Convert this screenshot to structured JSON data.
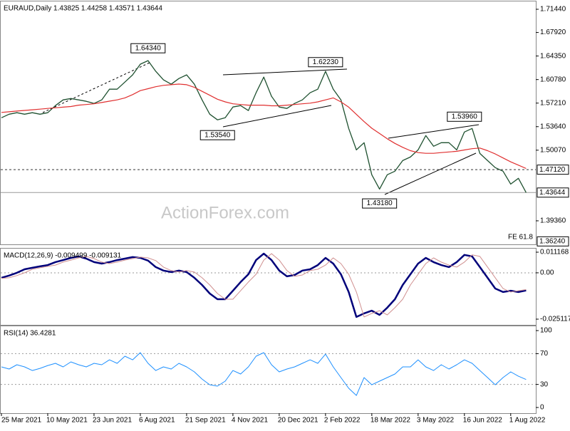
{
  "chart_data": [
    {
      "type": "line",
      "title": "EURAUD,Daily  1.43825 1.44258 1.43571 1.43644",
      "watermark": "ActionForex.com",
      "ylim": [
        1.3579,
        1.7263
      ],
      "yticks": [
        {
          "value": 1.7144,
          "label": "1.71440"
        },
        {
          "value": 1.6792,
          "label": "1.67920"
        },
        {
          "value": 1.6435,
          "label": "1.64350"
        },
        {
          "value": 1.6078,
          "label": "1.60780"
        },
        {
          "value": 1.5721,
          "label": "1.57210"
        },
        {
          "value": 1.5364,
          "label": "1.53640"
        },
        {
          "value": 1.5007,
          "label": "1.50070"
        },
        {
          "value": 1.3936,
          "label": "1.39360"
        }
      ],
      "series": [
        {
          "color": "#1f5130",
          "values": [
            1.5499,
            1.5553,
            1.5575,
            1.5553,
            1.5575,
            1.5553,
            1.5575,
            1.5683,
            1.577,
            1.5791,
            1.577,
            1.5748,
            1.5716,
            1.577,
            1.5932,
            1.5932,
            1.604,
            1.6149,
            1.6311,
            1.6365,
            1.6203,
            1.6073,
            1.6008,
            1.6094,
            1.6149,
            1.6008,
            1.577,
            1.5553,
            1.5467,
            1.5499,
            1.5662,
            1.5683,
            1.5608,
            1.5878,
            1.6116,
            1.5824,
            1.5662,
            1.564,
            1.5716,
            1.577,
            1.5878,
            1.5932,
            1.6203,
            1.5932,
            1.577,
            1.5337,
            1.5012,
            1.5121,
            1.4634,
            1.4417,
            1.4634,
            1.4688,
            1.485,
            1.4904,
            1.5012,
            1.5229,
            1.5067,
            1.5121,
            1.5121,
            1.5012,
            1.5283,
            1.5337,
            1.4958,
            1.485,
            1.4742,
            1.4688,
            1.4493,
            1.458,
            1.4364
          ]
        },
        {
          "color": "#e03030",
          "values": [
            1.558,
            1.559,
            1.56,
            1.561,
            1.562,
            1.563,
            1.564,
            1.565,
            1.566,
            1.567,
            1.569,
            1.57,
            1.571,
            1.573,
            1.575,
            1.577,
            1.58,
            1.585,
            1.591,
            1.594,
            1.597,
            1.599,
            1.6,
            1.601,
            1.6,
            1.596,
            1.59,
            1.584,
            1.578,
            1.574,
            1.571,
            1.57,
            1.569,
            1.569,
            1.569,
            1.568,
            1.568,
            1.569,
            1.57,
            1.571,
            1.572,
            1.574,
            1.577,
            1.58,
            1.574,
            1.566,
            1.555,
            1.544,
            1.534,
            1.526,
            1.518,
            1.511,
            1.505,
            1.5,
            1.497,
            1.496,
            1.496,
            1.497,
            1.498,
            1.499,
            1.501,
            1.503,
            1.504,
            1.5,
            1.495,
            1.489,
            1.483,
            1.478,
            1.473
          ]
        }
      ],
      "price_levels": [
        {
          "value": 1.4712,
          "label": "1.47120",
          "line": "dashed"
        },
        {
          "value": 1.43644,
          "label": "1.43644",
          "line": "solid"
        },
        {
          "value": 1.3624,
          "label": "1.36240",
          "line": "none",
          "note": "FE 61.8"
        }
      ],
      "annotations": [
        {
          "label": "1.64340",
          "value": 1.6434,
          "at": 19,
          "position": "above"
        },
        {
          "label": "1.62230",
          "value": 1.6223,
          "at": 42,
          "position": "above"
        },
        {
          "label": "1.53540",
          "value": 1.5354,
          "at": 28,
          "position": "below"
        },
        {
          "label": "1.53960",
          "value": 1.5396,
          "at": 60,
          "position": "above"
        },
        {
          "label": "1.43180",
          "value": 1.4318,
          "at": 49,
          "position": "below"
        }
      ]
    },
    {
      "type": "line",
      "title": "MACD(12,26,9) -0.009499 -0.009131",
      "ylim": [
        -0.0282,
        0.0131
      ],
      "yticks": [
        0.011168,
        {
          "value": 0,
          "label": "0.00"
        },
        -0.025117
      ],
      "grid_levels": [
        0
      ],
      "series": [
        {
          "color": "#00007a",
          "values": [
            -0.0027,
            -0.0015,
            0.0,
            0.0019,
            0.0027,
            0.0035,
            0.0042,
            0.0058,
            0.0069,
            0.0081,
            0.0089,
            0.0077,
            0.0058,
            0.005,
            0.0058,
            0.0069,
            0.0077,
            0.0085,
            0.0081,
            0.0066,
            0.0031,
            0.0012,
            0.0004,
            0.0012,
            0.0004,
            -0.0027,
            -0.0066,
            -0.0112,
            -0.0143,
            -0.0143,
            -0.0097,
            -0.005,
            -0.0008,
            0.0069,
            0.0104,
            0.0069,
            0.0012,
            -0.0019,
            -0.0012,
            0.0012,
            0.0019,
            0.0042,
            0.0081,
            0.005,
            -0.0008,
            -0.0104,
            -0.0239,
            -0.022,
            -0.0205,
            -0.0228,
            -0.0189,
            -0.0143,
            -0.0066,
            -0.0008,
            0.005,
            0.0081,
            0.0058,
            0.0042,
            0.0031,
            0.0058,
            0.0097,
            0.0089,
            0.0031,
            -0.0027,
            -0.0085,
            -0.0104,
            -0.0097,
            -0.0104,
            -0.0095
          ]
        },
        {
          "color": "#d09090",
          "values": [
            -0.003,
            -0.0027,
            -0.0015,
            0.0,
            0.0019,
            0.0027,
            0.0035,
            0.0042,
            0.0058,
            0.0069,
            0.0081,
            0.0089,
            0.0077,
            0.0058,
            0.005,
            0.0058,
            0.0069,
            0.0077,
            0.0085,
            0.0081,
            0.0066,
            0.0031,
            0.0012,
            0.0004,
            0.0012,
            0.0004,
            -0.0027,
            -0.0066,
            -0.0112,
            -0.0143,
            -0.0143,
            -0.0097,
            -0.005,
            -0.0008,
            0.0069,
            0.0104,
            0.0069,
            0.0012,
            -0.0019,
            -0.0012,
            0.0012,
            0.0019,
            0.0042,
            0.0081,
            0.005,
            -0.0008,
            -0.0104,
            -0.0239,
            -0.022,
            -0.0205,
            -0.0228,
            -0.0189,
            -0.0143,
            -0.0066,
            -0.0008,
            0.005,
            0.0081,
            0.0058,
            0.0042,
            0.0031,
            0.0058,
            0.0097,
            0.0089,
            0.0031,
            -0.0027,
            -0.0085,
            -0.0104,
            -0.0097,
            -0.0091
          ]
        }
      ]
    },
    {
      "type": "line",
      "title": "RSI(14) 36.4281",
      "ylim": [
        -7.4,
        105.6
      ],
      "yticks": [
        100,
        70,
        30,
        0
      ],
      "grid_levels": [
        70,
        30
      ],
      "categories": [
        "25 Mar 2021",
        null,
        null,
        null,
        null,
        null,
        "10 May 2021",
        null,
        null,
        null,
        null,
        null,
        "23 Jun 2021",
        null,
        null,
        null,
        null,
        null,
        "6 Aug 2021",
        null,
        null,
        null,
        null,
        null,
        "21 Sep 2021",
        null,
        null,
        null,
        null,
        null,
        "4 Nov 2021",
        null,
        null,
        null,
        null,
        null,
        "20 Dec 2021",
        null,
        null,
        null,
        null,
        null,
        "2 Feb 2022",
        null,
        null,
        null,
        null,
        null,
        "18 Mar 2022",
        null,
        null,
        null,
        null,
        null,
        "3 May 2022",
        null,
        null,
        null,
        null,
        null,
        "16 Jun 2022",
        null,
        null,
        null,
        null,
        null,
        "1 Aug 2022",
        null,
        null
      ],
      "series": [
        {
          "color": "#1e90ff",
          "values": [
            52.8,
            50,
            55.6,
            52.8,
            48.1,
            50.9,
            54.6,
            57.4,
            52.8,
            59.3,
            55.6,
            52.8,
            57.4,
            55.6,
            62.0,
            57.4,
            66.7,
            62.0,
            71.3,
            57.4,
            48.1,
            52.8,
            50,
            57.4,
            52.8,
            46.3,
            37.0,
            29.6,
            27.8,
            34.3,
            48.1,
            43.5,
            52.8,
            66.7,
            71.3,
            55.6,
            46.3,
            50,
            52.8,
            57.4,
            62.0,
            57.4,
            69.4,
            52.8,
            38.9,
            25,
            15.7,
            38.9,
            29.6,
            34.3,
            38.9,
            43.5,
            52.8,
            52.8,
            62.0,
            52.8,
            48.1,
            55.6,
            50,
            55.6,
            62.0,
            57.4,
            48.1,
            38.9,
            29.6,
            38.9,
            46.3,
            40.7,
            36.4
          ]
        }
      ]
    }
  ]
}
